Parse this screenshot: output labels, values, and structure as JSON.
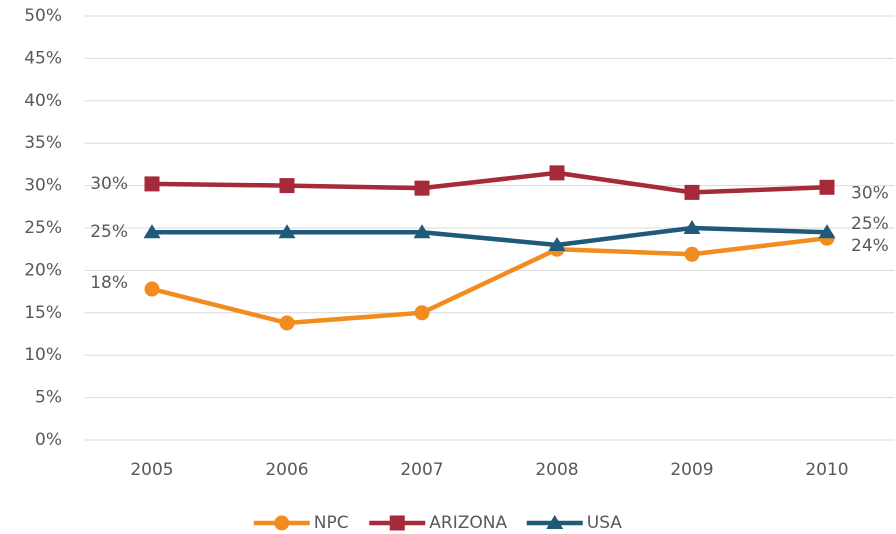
{
  "chart_data": {
    "type": "line",
    "categories": [
      "2005",
      "2006",
      "2007",
      "2008",
      "2009",
      "2010"
    ],
    "series": [
      {
        "name": "NPC",
        "color": "#f28c1e",
        "marker": "circle",
        "values": [
          17.8,
          13.8,
          15.0,
          22.5,
          21.9,
          23.8
        ],
        "value_labels": [
          "18%",
          null,
          null,
          null,
          null,
          "24%"
        ]
      },
      {
        "name": "ARIZONA",
        "color": "#a52a3a",
        "marker": "square",
        "values": [
          30.2,
          30.0,
          29.7,
          31.5,
          29.2,
          29.8
        ],
        "value_labels": [
          "30%",
          null,
          null,
          null,
          null,
          "30%"
        ]
      },
      {
        "name": "USA",
        "color": "#1f5a7a",
        "marker": "triangle",
        "values": [
          24.5,
          24.5,
          24.5,
          23.0,
          25.0,
          24.5
        ],
        "value_labels": [
          "25%",
          null,
          null,
          null,
          null,
          "25%"
        ]
      }
    ],
    "ylim": [
      0,
      50
    ],
    "yticks": [
      {
        "value": 0,
        "label": "0%"
      },
      {
        "value": 5,
        "label": "5%"
      },
      {
        "value": 10,
        "label": "10%"
      },
      {
        "value": 15,
        "label": "15%"
      },
      {
        "value": 20,
        "label": "20%"
      },
      {
        "value": 25,
        "label": "25%"
      },
      {
        "value": 30,
        "label": "30%"
      },
      {
        "value": 35,
        "label": "35%"
      },
      {
        "value": 40,
        "label": "40%"
      },
      {
        "value": 45,
        "label": "45%"
      },
      {
        "value": 50,
        "label": "50%"
      }
    ],
    "grid": true,
    "legend": "bottom"
  }
}
